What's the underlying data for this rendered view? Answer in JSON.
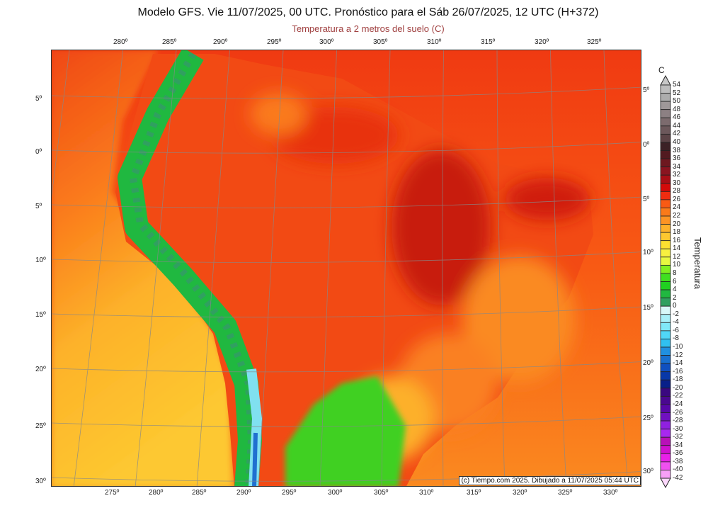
{
  "header": {
    "title": "Modelo GFS. Vie 11/07/2025, 00 UTC. Pronóstico para el Sáb 26/07/2025, 12 UTC (H+372)",
    "subtitle": "Temperatura a 2 metros del suelo (C)"
  },
  "axes": {
    "top_lon": [
      "280º",
      "285º",
      "290º",
      "295º",
      "300º",
      "305º",
      "310º",
      "315º",
      "320º",
      "325º"
    ],
    "bottom_lon": [
      "275º",
      "280º",
      "285º",
      "290º",
      "295º",
      "300º",
      "305º",
      "310º",
      "315º",
      "320º",
      "325º",
      "330º"
    ],
    "left_lat": [
      "5º",
      "0º",
      "5º",
      "10º",
      "15º",
      "20º",
      "25º",
      "30º"
    ],
    "right_lat": [
      "5º",
      "0º",
      "5º",
      "10º",
      "15º",
      "20º",
      "25º",
      "30º"
    ]
  },
  "colorbar": {
    "unit": "C",
    "title": "Temperatura",
    "labels": [
      "54",
      "52",
      "50",
      "48",
      "46",
      "44",
      "42",
      "40",
      "38",
      "36",
      "34",
      "32",
      "30",
      "28",
      "26",
      "24",
      "22",
      "20",
      "18",
      "16",
      "14",
      "12",
      "10",
      "8",
      "6",
      "4",
      "2",
      "0",
      "-2",
      "-4",
      "-6",
      "-8",
      "-10",
      "-12",
      "-14",
      "-16",
      "-18",
      "-20",
      "-22",
      "-24",
      "-26",
      "-28",
      "-30",
      "-32",
      "-34",
      "-36",
      "-38",
      "-40",
      "-42"
    ],
    "colors": [
      "#bdbdbd",
      "#adadad",
      "#9e9899",
      "#8c8083",
      "#7c6b6e",
      "#6c585b",
      "#5c4447",
      "#3c2226",
      "#521a20",
      "#6e1820",
      "#8a1420",
      "#a80e16",
      "#d40a0a",
      "#f02c10",
      "#f85a14",
      "#fa7a1a",
      "#fc9424",
      "#fdb22a",
      "#fdc830",
      "#fde030",
      "#f8f040",
      "#e8f840",
      "#80f020",
      "#40e020",
      "#20d020",
      "#20b840",
      "#30a060",
      "#d8f8f8",
      "#a8f0f8",
      "#80e8f8",
      "#50d8f8",
      "#30c0f0",
      "#2090e0",
      "#1870d0",
      "#1050c0",
      "#0838a8",
      "#08208a",
      "#3a0880",
      "#4a0890",
      "#5808a8",
      "#7010c0",
      "#9020e0",
      "#a828f0",
      "#b810b8",
      "#d010d0",
      "#e820e8",
      "#f050f0",
      "#f8a0f8"
    ],
    "top_arrow_color": "#c8c8c8",
    "bottom_arrow_color": "#fcd8fc"
  },
  "footer": "(c) Tiempo.com 2025. Dibujado a 11/07/2025 05:44 UTC"
}
